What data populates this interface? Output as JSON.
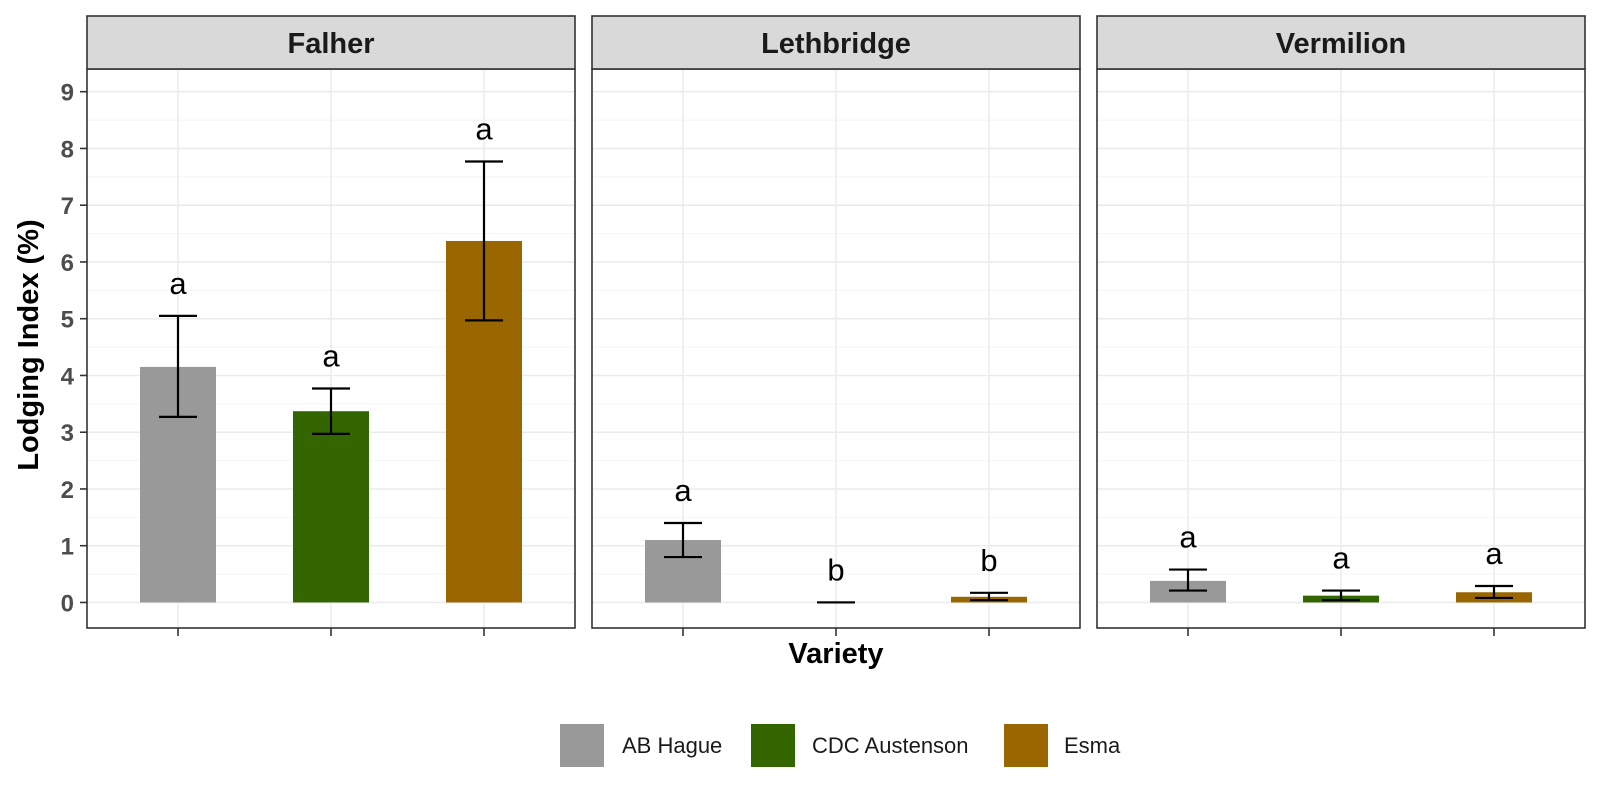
{
  "chart_data": {
    "type": "bar",
    "ylabel": "Lodging Index (%)",
    "xlabel": "Variety",
    "ylim": [
      -0.45,
      9.4
    ],
    "y_ticks": [
      0,
      1,
      2,
      3,
      4,
      5,
      6,
      7,
      8,
      9
    ],
    "grid": true,
    "legend_position": "bottom",
    "categories": [
      "AB Hague",
      "CDC Austenson",
      "Esma"
    ],
    "colors": {
      "AB Hague": "#999999",
      "CDC Austenson": "#336600",
      "Esma": "#996600"
    },
    "panels": [
      {
        "name": "Falher",
        "values": [
          4.15,
          3.37,
          6.37
        ],
        "err_low": [
          3.27,
          2.97,
          4.97
        ],
        "err_high": [
          5.05,
          3.77,
          7.77
        ],
        "letters": [
          "a",
          "a",
          "a"
        ]
      },
      {
        "name": "Lethbridge",
        "values": [
          1.1,
          0.0,
          0.1
        ],
        "err_low": [
          0.8,
          0.0,
          0.04
        ],
        "err_high": [
          1.4,
          0.0,
          0.17
        ],
        "letters": [
          "a",
          "b",
          "b"
        ]
      },
      {
        "name": "Vermilion",
        "values": [
          0.38,
          0.12,
          0.18
        ],
        "err_low": [
          0.21,
          0.04,
          0.08
        ],
        "err_high": [
          0.58,
          0.21,
          0.29
        ],
        "letters": [
          "a",
          "a",
          "a"
        ]
      }
    ]
  }
}
